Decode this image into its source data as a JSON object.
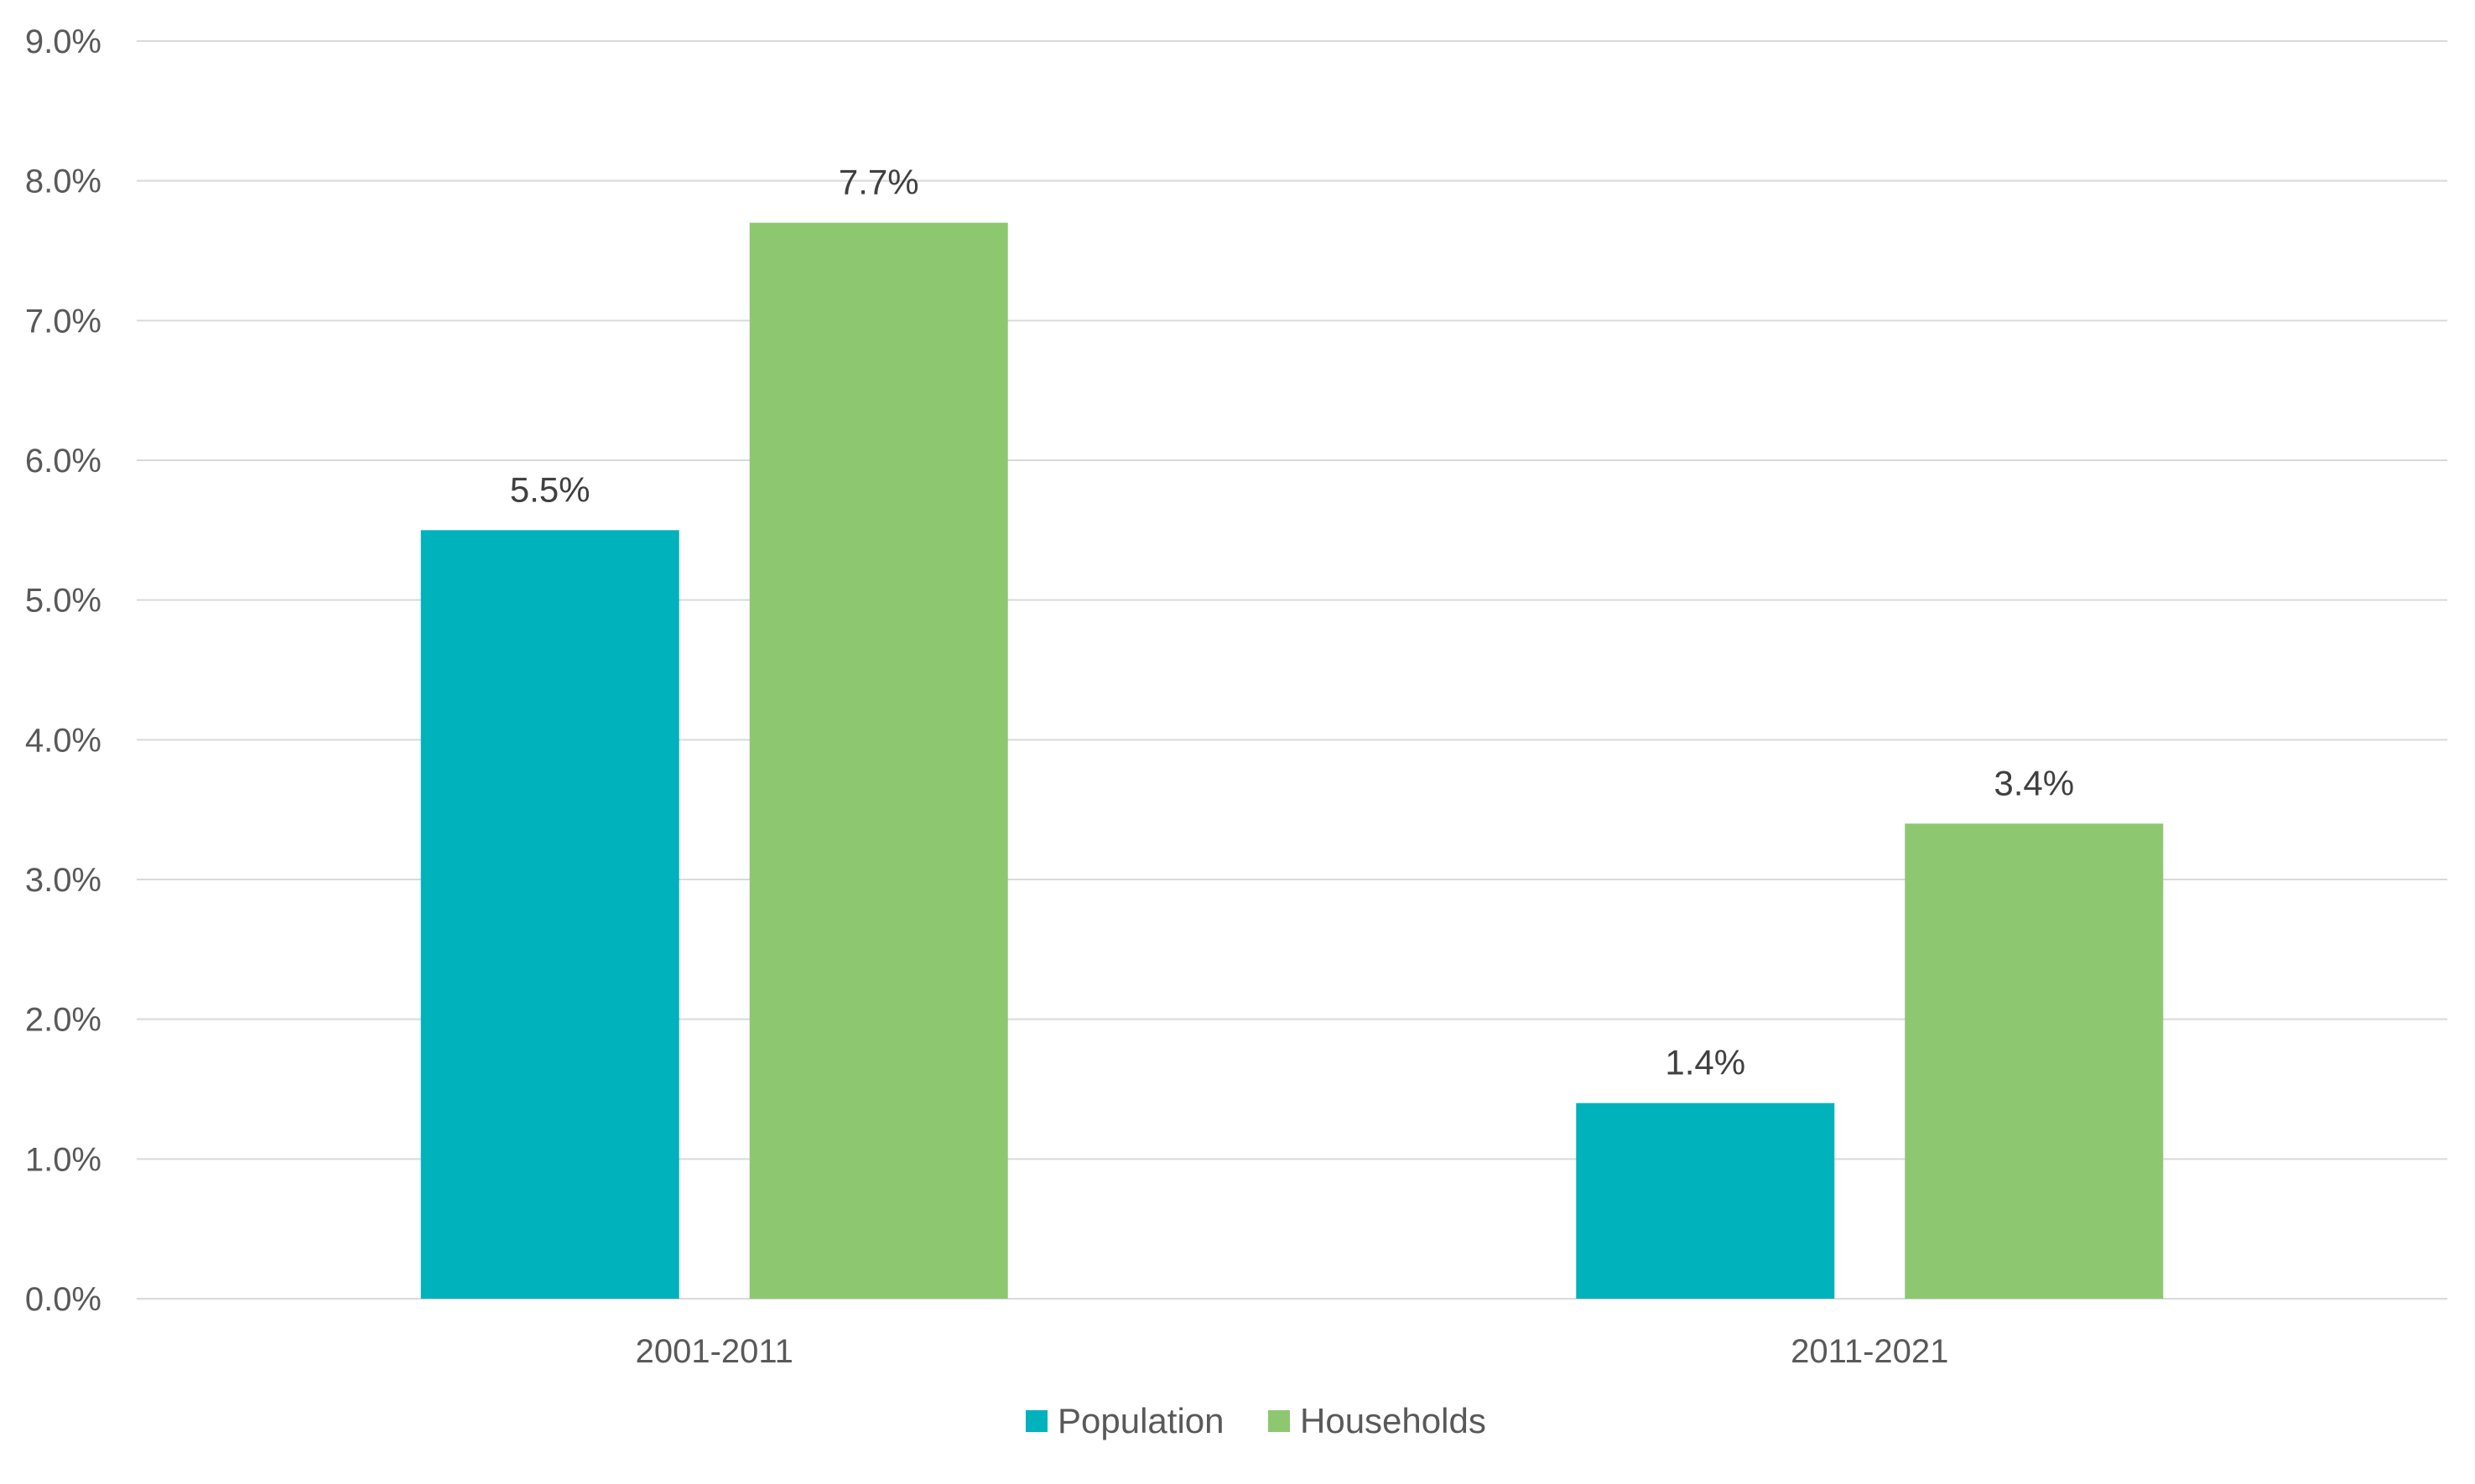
{
  "chart_data": {
    "type": "bar",
    "categories": [
      "2001-2011",
      "2011-2021"
    ],
    "series": [
      {
        "name": "Population",
        "values": [
          5.5,
          1.4
        ],
        "color": "#00b2bc"
      },
      {
        "name": "Households",
        "values": [
          7.7,
          3.4
        ],
        "color": "#8dc870"
      }
    ],
    "data_labels": [
      [
        "5.5%",
        "1.4%"
      ],
      [
        "7.7%",
        "3.4%"
      ]
    ],
    "yticks": [
      "0.0%",
      "1.0%",
      "2.0%",
      "3.0%",
      "4.0%",
      "5.0%",
      "6.0%",
      "7.0%",
      "8.0%",
      "9.0%"
    ],
    "ylim": [
      0,
      9
    ],
    "grid": true,
    "legend_position": "bottom-center",
    "title": "",
    "xlabel": "",
    "ylabel": ""
  }
}
